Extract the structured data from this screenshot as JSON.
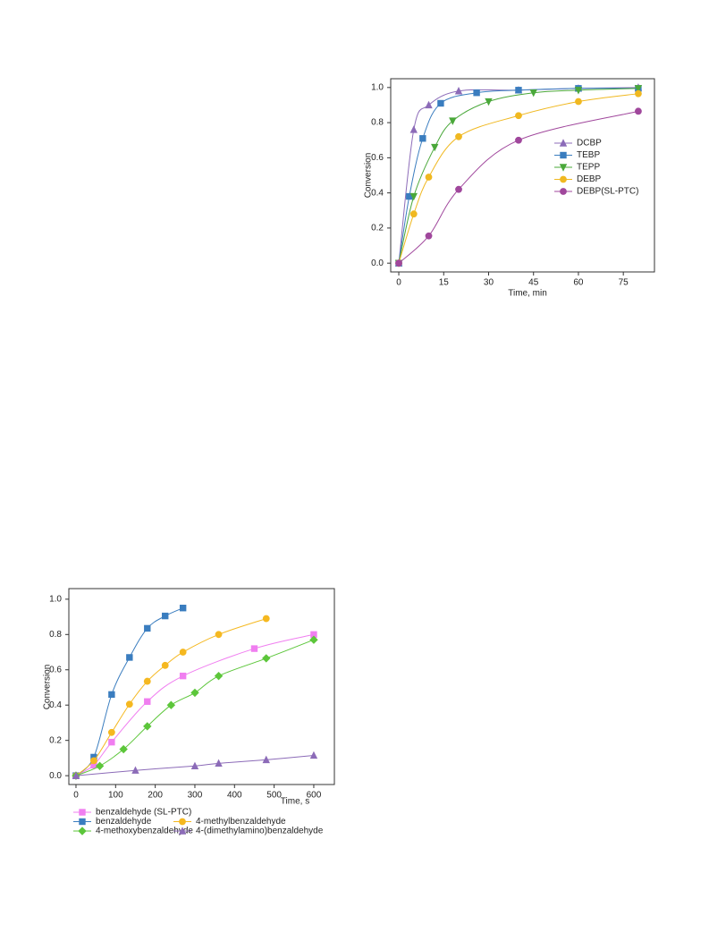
{
  "chart_data": [
    {
      "type": "line",
      "x_label": "Time, min",
      "y_label": "Conversion",
      "xlim": [
        -2.7,
        85.4
      ],
      "ylim": [
        -0.05,
        1.05
      ],
      "xticks": [
        0,
        15,
        30,
        45,
        60,
        75
      ],
      "yticks": [
        {
          "value": 0,
          "label": "0.0"
        },
        0.2,
        0.4,
        0.6,
        0.8,
        {
          "value": 1,
          "label": "1.0"
        }
      ],
      "legend": "center right",
      "series": [
        {
          "name": "DCBP",
          "color": "#8c6bb8",
          "marker": "triangle",
          "x": [
            0,
            5,
            10,
            20,
            40,
            60,
            80
          ],
          "values": [
            0,
            0.76,
            0.9,
            0.98,
            0.985,
            0.995,
            1.0
          ]
        },
        {
          "name": "TEBP",
          "color": "#3a7dbf",
          "marker": "square",
          "x": [
            0,
            3.5,
            8,
            14,
            26,
            40,
            60,
            80
          ],
          "values": [
            0,
            0.38,
            0.71,
            0.91,
            0.97,
            0.985,
            0.995,
            0.995
          ]
        },
        {
          "name": "TEPP",
          "color": "#4aa83a",
          "marker": "triangle-down",
          "x": [
            0,
            5,
            12,
            18,
            30,
            45,
            60,
            80
          ],
          "values": [
            0,
            0.38,
            0.66,
            0.81,
            0.92,
            0.97,
            0.985,
            0.995
          ]
        },
        {
          "name": "DEBP",
          "color": "#f0b820",
          "marker": "circle",
          "x": [
            0,
            5,
            10,
            20,
            40,
            60,
            80
          ],
          "values": [
            0,
            0.28,
            0.49,
            0.72,
            0.84,
            0.92,
            0.965
          ]
        },
        {
          "name": "DEBP(SL-PTC)",
          "color": "#a0479c",
          "marker": "circle",
          "x": [
            0,
            10,
            20,
            40,
            80
          ],
          "values": [
            0,
            0.155,
            0.42,
            0.7,
            0.865
          ]
        }
      ]
    },
    {
      "type": "line",
      "x_label": "Time, s",
      "y_label": "Conversion",
      "xlim": [
        -18,
        652
      ],
      "ylim": [
        -0.05,
        1.06
      ],
      "xticks": [
        0,
        100,
        200,
        300,
        400,
        500,
        600
      ],
      "yticks": [
        {
          "value": 0,
          "label": "0.0"
        },
        0.2,
        0.4,
        0.6,
        0.8,
        {
          "value": 1,
          "label": "1.0"
        }
      ],
      "legend": "bottom",
      "series": [
        {
          "name": "benzaldehyde (SL-PTC)",
          "color": "#f07ef0",
          "marker": "square",
          "x": [
            0,
            45,
            90,
            180,
            270,
            450,
            600
          ],
          "values": [
            0,
            0.06,
            0.19,
            0.42,
            0.565,
            0.72,
            0.8
          ]
        },
        {
          "name": "benzaldehyde",
          "color": "#3a7dbf",
          "marker": "square",
          "x": [
            0,
            45,
            90,
            135,
            180,
            225,
            270
          ],
          "values": [
            0,
            0.105,
            0.46,
            0.67,
            0.835,
            0.905,
            0.95
          ]
        },
        {
          "name": "4-methylbenzaldehyde",
          "color": "#f5b820",
          "marker": "circle",
          "x": [
            0,
            45,
            90,
            135,
            180,
            225,
            270,
            360,
            480
          ],
          "values": [
            0,
            0.085,
            0.245,
            0.405,
            0.535,
            0.625,
            0.7,
            0.8,
            0.89
          ]
        },
        {
          "name": "4-methoxybenzaldehyde",
          "color": "#5cc63a",
          "marker": "diamond",
          "x": [
            0,
            60,
            120,
            180,
            240,
            300,
            360,
            480,
            600
          ],
          "values": [
            0,
            0.055,
            0.15,
            0.28,
            0.4,
            0.47,
            0.565,
            0.665,
            0.77
          ]
        },
        {
          "name": "4-(dimethylamino)benzaldehyde",
          "color": "#8c6bb8",
          "marker": "triangle",
          "x": [
            0,
            150,
            300,
            360,
            480,
            600
          ],
          "values": [
            0,
            0.03,
            0.055,
            0.07,
            0.09,
            0.115
          ]
        }
      ]
    }
  ]
}
